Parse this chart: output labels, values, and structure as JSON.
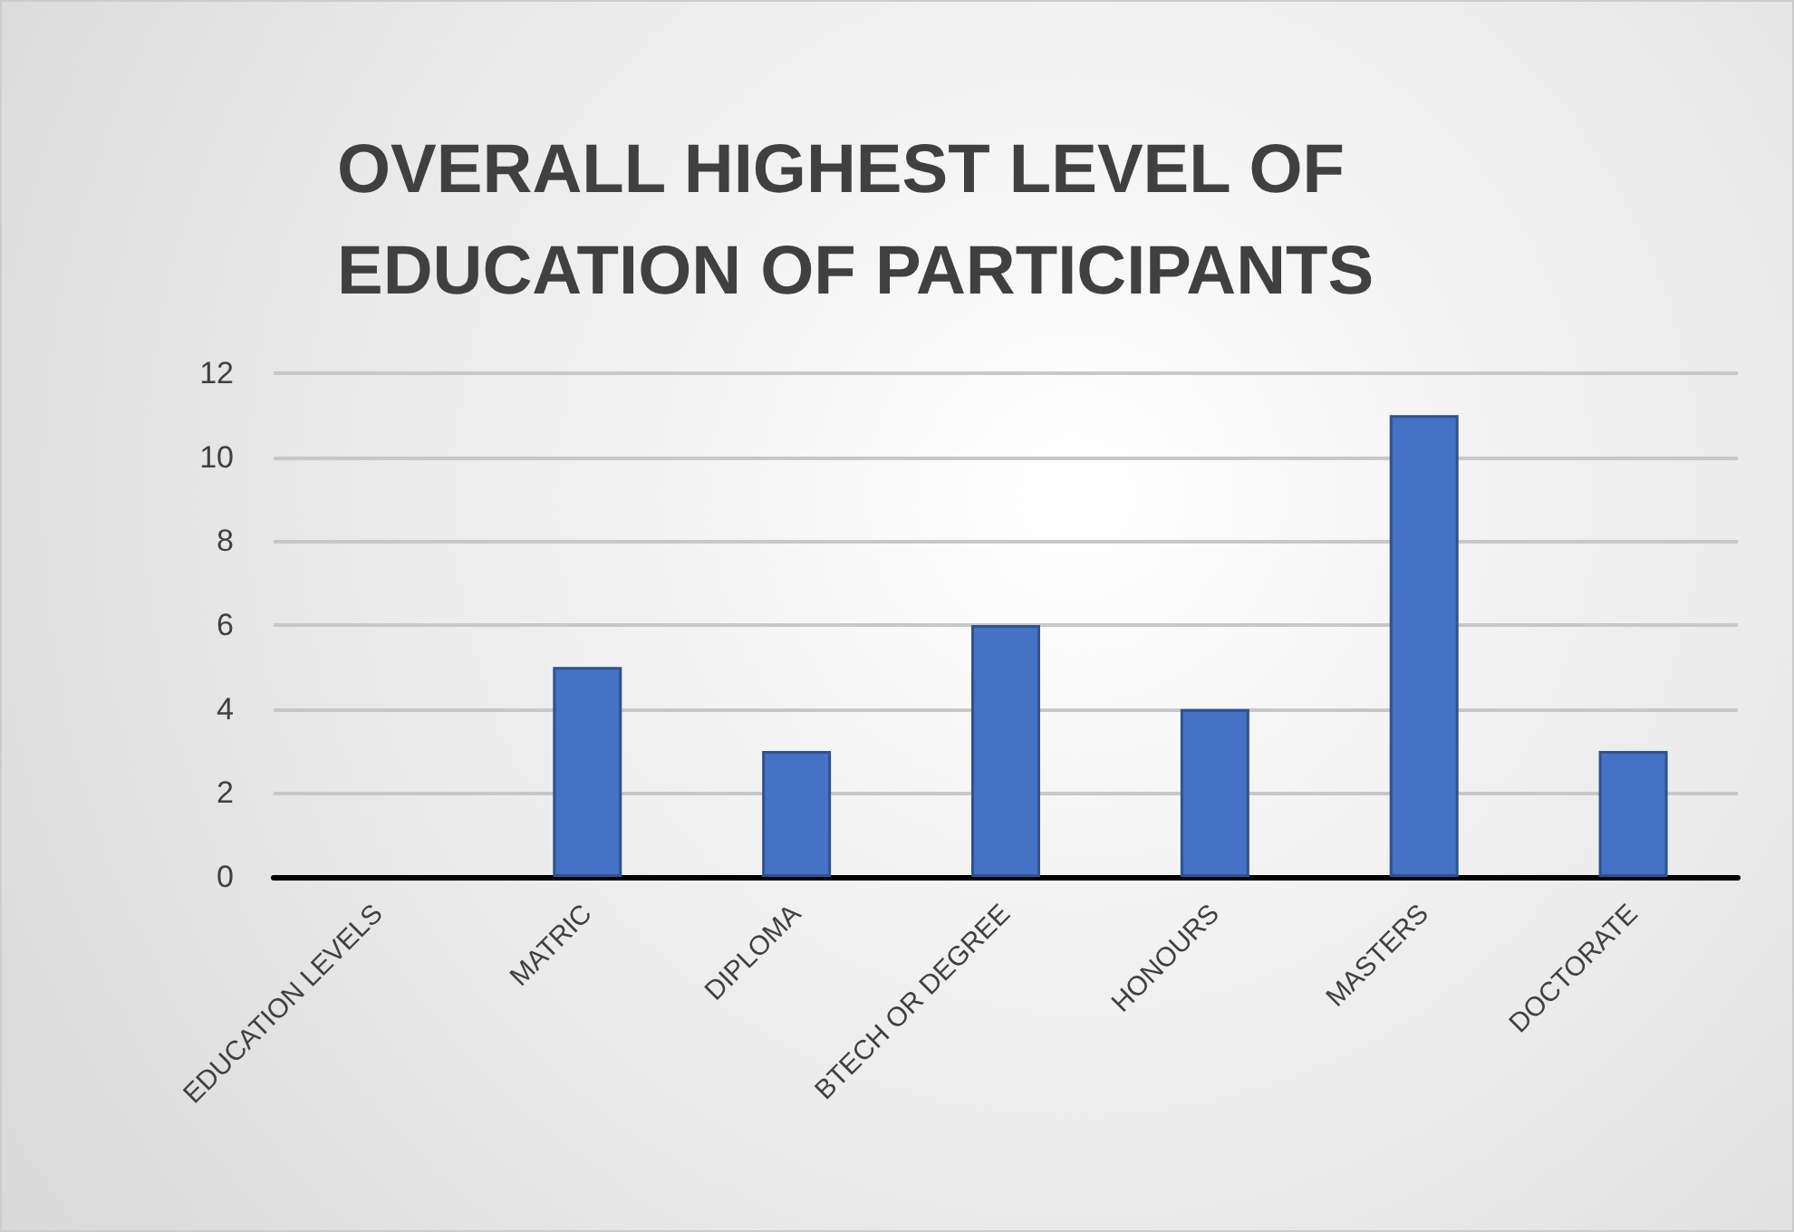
{
  "chart_data": {
    "type": "bar",
    "title": "OVERALL HIGHEST LEVEL OF EDUCATION OF PARTICIPANTS",
    "categories": [
      "EDUCATION LEVELS",
      "MATRIC",
      "DIPLOMA",
      "BTECH OR DEGREE",
      "HONOURS",
      "MASTERS",
      "DOCTORATE"
    ],
    "values": [
      null,
      5,
      3,
      6,
      4,
      11,
      3
    ],
    "color": "#4472c4",
    "ylim": [
      0,
      12
    ],
    "yticks": [
      0,
      2,
      4,
      6,
      8,
      10,
      12
    ],
    "grid": "y"
  }
}
